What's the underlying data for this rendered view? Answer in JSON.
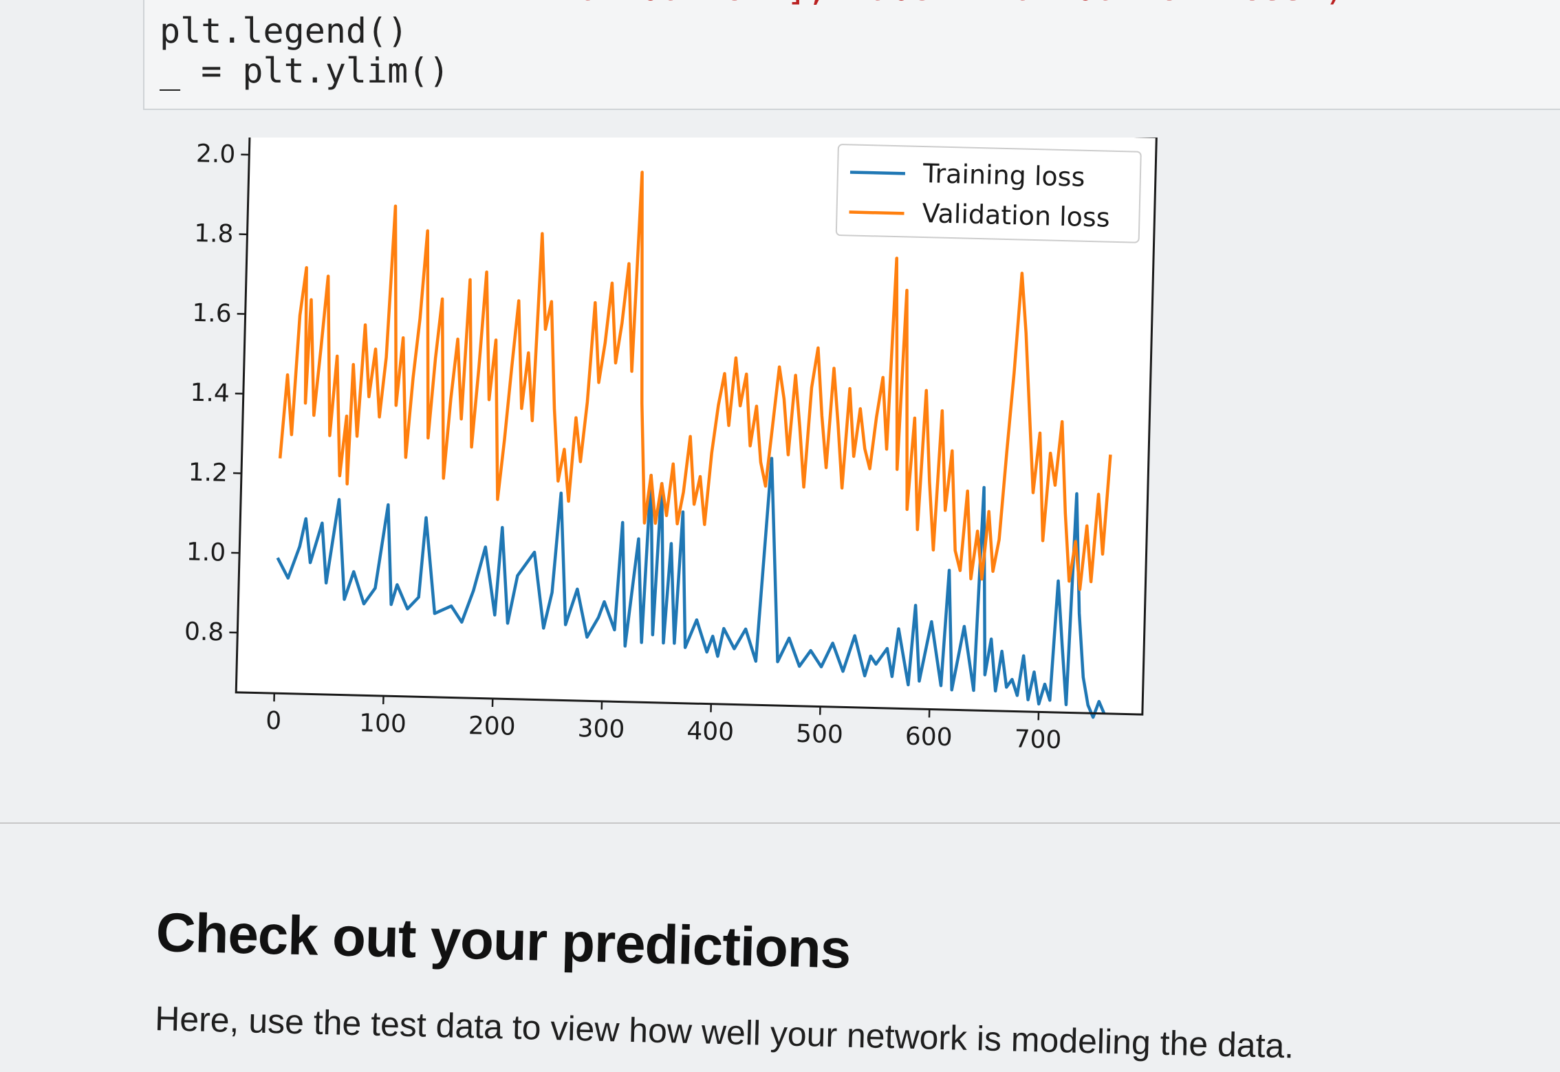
{
  "code_cell": {
    "line1_prefix": "",
    "line1_str": "validation'], label='validation loss')",
    "line2": "plt.legend()",
    "line3": "_ = plt.ylim()"
  },
  "chart_data": {
    "type": "line",
    "title": "",
    "xlabel": "",
    "ylabel": "",
    "xlim": [
      -35,
      795
    ],
    "ylim": [
      0.65,
      2.1
    ],
    "xticks": [
      0,
      100,
      200,
      300,
      400,
      500,
      600,
      700
    ],
    "yticks": [
      0.8,
      1.0,
      1.2,
      1.4,
      1.6,
      1.8,
      2.0
    ],
    "xtick_labels": [
      "0",
      "100",
      "200",
      "300",
      "400",
      "500",
      "600",
      "700"
    ],
    "ytick_labels": [
      "0.8",
      "1.0",
      "1.2",
      "1.4",
      "1.6",
      "1.8",
      "2.0"
    ],
    "legend_position": "top-right",
    "grid": false,
    "series": [
      {
        "name": "Training loss",
        "color": "#1f77b4",
        "x": [
          0,
          10,
          20,
          25,
          30,
          40,
          45,
          55,
          62,
          70,
          80,
          90,
          100,
          105,
          110,
          120,
          130,
          135,
          145,
          160,
          170,
          180,
          190,
          200,
          205,
          212,
          220,
          235,
          245,
          252,
          258,
          265,
          275,
          285,
          295,
          300,
          310,
          315,
          320,
          330,
          335,
          340,
          345,
          350,
          355,
          360,
          365,
          370,
          375,
          385,
          395,
          400,
          405,
          410,
          420,
          430,
          440,
          450,
          460,
          470,
          480,
          490,
          500,
          510,
          520,
          530,
          540,
          545,
          550,
          560,
          565,
          570,
          580,
          585,
          590,
          600,
          610,
          615,
          620,
          630,
          640,
          645,
          650,
          655,
          660,
          665,
          670,
          675,
          680,
          685,
          690,
          695,
          700,
          705,
          710,
          715,
          720,
          725,
          730,
          735,
          740,
          745,
          750,
          755,
          760
        ],
        "y": [
          0.99,
          0.94,
          1.02,
          1.09,
          0.98,
          1.08,
          0.93,
          1.14,
          0.89,
          0.96,
          0.88,
          0.92,
          1.13,
          0.88,
          0.93,
          0.87,
          0.9,
          1.1,
          0.86,
          0.88,
          0.84,
          0.92,
          1.03,
          0.86,
          1.08,
          0.84,
          0.96,
          1.02,
          0.83,
          0.92,
          1.17,
          0.84,
          0.93,
          0.81,
          0.86,
          0.9,
          0.83,
          1.1,
          0.79,
          1.06,
          0.8,
          1.22,
          0.82,
          1.2,
          0.8,
          1.05,
          0.8,
          1.13,
          0.79,
          0.86,
          0.78,
          0.82,
          0.77,
          0.84,
          0.79,
          0.84,
          0.76,
          1.27,
          0.76,
          0.82,
          0.75,
          0.79,
          0.75,
          0.81,
          0.74,
          0.83,
          0.73,
          0.78,
          0.76,
          0.8,
          0.73,
          0.85,
          0.71,
          0.91,
          0.72,
          0.87,
          0.71,
          1.0,
          0.7,
          0.86,
          0.7,
          1.21,
          0.74,
          0.83,
          0.7,
          0.8,
          0.71,
          0.73,
          0.69,
          0.79,
          0.68,
          0.75,
          0.67,
          0.72,
          0.68,
          0.98,
          0.82,
          0.67,
          1.2,
          0.9,
          0.74,
          0.67,
          0.64,
          0.68,
          0.65
        ]
      },
      {
        "name": "Validation loss",
        "color": "#ff7f0e",
        "x": [
          0,
          5,
          10,
          15,
          20,
          22,
          25,
          30,
          35,
          40,
          45,
          50,
          55,
          60,
          62,
          65,
          70,
          75,
          80,
          85,
          90,
          95,
          100,
          105,
          110,
          115,
          120,
          125,
          130,
          135,
          140,
          145,
          150,
          155,
          160,
          165,
          170,
          175,
          180,
          185,
          190,
          195,
          200,
          205,
          210,
          215,
          220,
          225,
          230,
          235,
          240,
          245,
          250,
          255,
          260,
          265,
          270,
          275,
          280,
          285,
          290,
          295,
          300,
          305,
          310,
          315,
          320,
          325,
          330,
          335,
          340,
          345,
          350,
          355,
          360,
          365,
          370,
          375,
          380,
          385,
          390,
          395,
          400,
          405,
          410,
          415,
          420,
          425,
          430,
          435,
          440,
          445,
          450,
          455,
          460,
          465,
          470,
          475,
          480,
          485,
          490,
          495,
          500,
          505,
          510,
          515,
          520,
          525,
          530,
          535,
          540,
          545,
          550,
          555,
          560,
          565,
          570,
          575,
          580,
          585,
          590,
          595,
          600,
          605,
          610,
          615,
          620,
          625,
          630,
          635,
          640,
          645,
          650,
          655,
          660,
          665,
          670,
          675,
          680,
          685,
          690,
          695,
          700,
          705,
          710,
          715,
          720,
          725,
          730,
          735,
          740,
          745,
          750,
          755,
          760
        ],
        "y": [
          1.24,
          1.45,
          1.3,
          1.6,
          1.72,
          1.38,
          1.64,
          1.35,
          1.52,
          1.7,
          1.3,
          1.5,
          1.2,
          1.35,
          1.18,
          1.48,
          1.3,
          1.58,
          1.4,
          1.52,
          1.35,
          1.5,
          1.88,
          1.38,
          1.55,
          1.25,
          1.45,
          1.6,
          1.82,
          1.3,
          1.5,
          1.65,
          1.2,
          1.4,
          1.55,
          1.35,
          1.7,
          1.28,
          1.48,
          1.72,
          1.4,
          1.55,
          1.15,
          1.3,
          1.48,
          1.65,
          1.38,
          1.52,
          1.35,
          1.82,
          1.58,
          1.65,
          1.38,
          1.2,
          1.28,
          1.15,
          1.36,
          1.25,
          1.4,
          1.65,
          1.45,
          1.55,
          1.7,
          1.5,
          1.6,
          1.75,
          1.48,
          1.98,
          1.4,
          1.1,
          1.22,
          1.1,
          1.2,
          1.12,
          1.25,
          1.1,
          1.18,
          1.32,
          1.15,
          1.22,
          1.1,
          1.28,
          1.4,
          1.48,
          1.35,
          1.52,
          1.4,
          1.48,
          1.3,
          1.4,
          1.26,
          1.2,
          1.35,
          1.5,
          1.42,
          1.28,
          1.48,
          1.35,
          1.2,
          1.45,
          1.55,
          1.38,
          1.25,
          1.5,
          1.36,
          1.2,
          1.45,
          1.28,
          1.4,
          1.3,
          1.25,
          1.38,
          1.48,
          1.3,
          1.78,
          1.25,
          1.7,
          1.15,
          1.38,
          1.1,
          1.45,
          1.22,
          1.05,
          1.4,
          1.15,
          1.3,
          1.05,
          1.0,
          1.2,
          0.98,
          1.1,
          0.98,
          1.15,
          1.0,
          1.08,
          1.3,
          1.5,
          1.75,
          1.6,
          1.4,
          1.2,
          1.35,
          1.08,
          1.3,
          1.22,
          1.38,
          1.15,
          0.98,
          1.08,
          0.96,
          1.12,
          0.98,
          1.2,
          1.05,
          1.3
        ]
      }
    ]
  }
}
